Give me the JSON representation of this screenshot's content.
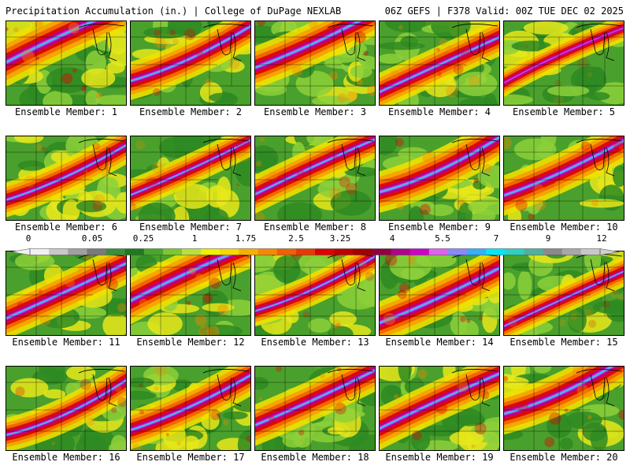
{
  "header": {
    "title_left": "Precipitation Accumulation (in.) | College of DuPage NEXLAB",
    "title_right": "06Z GEFS | F378 Valid: 00Z TUE DEC 02 2025"
  },
  "members": [
    {
      "label": "Ensemble Member: 1",
      "wet": 0.85,
      "band": 0.35
    },
    {
      "label": "Ensemble Member: 2",
      "wet": 0.65,
      "band": 0.55
    },
    {
      "label": "Ensemble Member: 3",
      "wet": 0.75,
      "band": 0.4
    },
    {
      "label": "Ensemble Member: 4",
      "wet": 0.6,
      "band": 0.7
    },
    {
      "label": "Ensemble Member: 5",
      "wet": 0.3,
      "band": 0.6
    },
    {
      "label": "Ensemble Member: 6",
      "wet": 0.55,
      "band": 0.6
    },
    {
      "label": "Ensemble Member: 7",
      "wet": 0.45,
      "band": 0.55
    },
    {
      "label": "Ensemble Member: 8",
      "wet": 0.6,
      "band": 0.55
    },
    {
      "label": "Ensemble Member: 9",
      "wet": 0.75,
      "band": 0.5
    },
    {
      "label": "Ensemble Member: 10",
      "wet": 0.7,
      "band": 0.55
    },
    {
      "label": "Ensemble Member: 11",
      "wet": 0.7,
      "band": 0.65
    },
    {
      "label": "Ensemble Member: 12",
      "wet": 0.8,
      "band": 0.45
    },
    {
      "label": "Ensemble Member: 13",
      "wet": 0.45,
      "band": 0.55
    },
    {
      "label": "Ensemble Member: 14",
      "wet": 0.75,
      "band": 0.7
    },
    {
      "label": "Ensemble Member: 15",
      "wet": 0.4,
      "band": 0.75
    },
    {
      "label": "Ensemble Member: 16",
      "wet": 0.55,
      "band": 0.65
    },
    {
      "label": "Ensemble Member: 17",
      "wet": 0.65,
      "band": 0.6
    },
    {
      "label": "Ensemble Member: 18",
      "wet": 0.7,
      "band": 0.55
    },
    {
      "label": "Ensemble Member: 19",
      "wet": 0.7,
      "band": 0.6
    },
    {
      "label": "Ensemble Member: 20",
      "wet": 0.75,
      "band": 0.4
    }
  ],
  "colorbar": {
    "ticks": [
      "0",
      "0.05",
      "0.25",
      "1",
      "1.75",
      "2.5",
      "3.25",
      "4",
      "5.5",
      "7",
      "9",
      "12"
    ],
    "colors": [
      "#f0f0f0",
      "#c8c8c8",
      "#a0a0a0",
      "#7a7a7a",
      "#3a8f3a",
      "#1e7a1e",
      "#49a82a",
      "#7dc82e",
      "#b9e03c",
      "#f0f000",
      "#f8d800",
      "#f8b000",
      "#f88800",
      "#f06000",
      "#e83a00",
      "#e00000",
      "#c00000",
      "#a00000",
      "#900040",
      "#b0008a",
      "#d000c8",
      "#e060f0",
      "#8888ff",
      "#30b0ff",
      "#00e8f8",
      "#30d0c0",
      "#50b0a0",
      "#8a8a8a",
      "#a8a8a8",
      "#c8c8c8"
    ]
  }
}
